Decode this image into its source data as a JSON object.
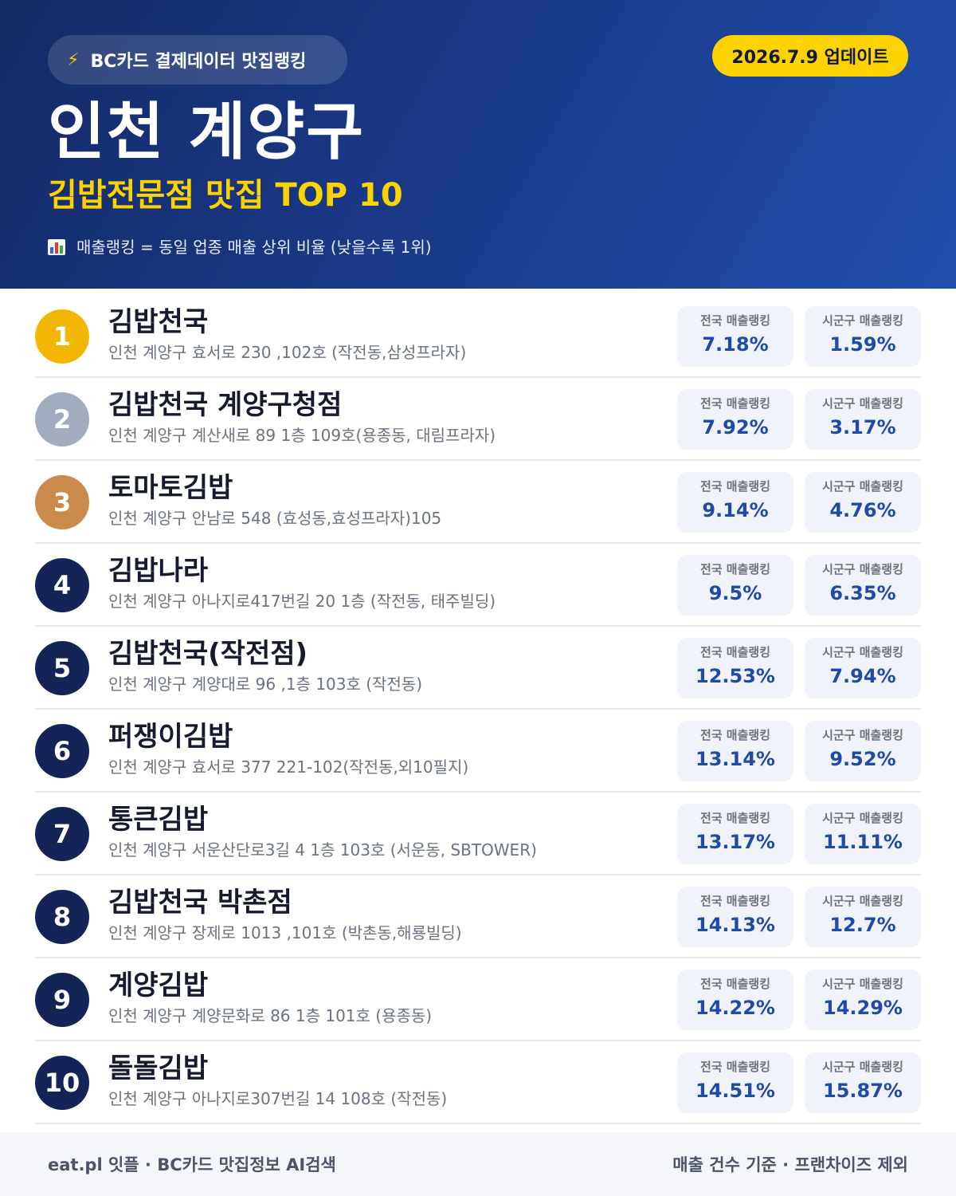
{
  "header": {
    "badge": "BC카드 결제데이터 맛집랭킹",
    "update": "2026.7.9 업데이트",
    "title": "인천 계양구",
    "subtitle": "김밥전문점 맛집 TOP 10",
    "note": "매출랭킹 = 동일 업종 매출 상위 비율 (낮을수록 1위)"
  },
  "labels": {
    "national": "전국 매출랭킹",
    "local": "시군구 매출랭킹"
  },
  "colors": {
    "gold": "#f2b705",
    "silver": "#a3acbf",
    "bronze": "#c98a4b",
    "navy": "#142456",
    "accent_yellow": "#fcd200",
    "value_blue": "#1f4aa8"
  },
  "items": [
    {
      "rank": "1",
      "name": "김밥천국",
      "address": "인천 계양구 효서로 230 ,102호 (작전동,삼성프라자)",
      "national": "7.18%",
      "local": "1.59%"
    },
    {
      "rank": "2",
      "name": "김밥천국 계양구청점",
      "address": "인천 계양구 계산새로 89 1층 109호(용종동, 대림프라자)",
      "national": "7.92%",
      "local": "3.17%"
    },
    {
      "rank": "3",
      "name": "토마토김밥",
      "address": "인천 계양구 안남로 548 (효성동,효성프라자)105",
      "national": "9.14%",
      "local": "4.76%"
    },
    {
      "rank": "4",
      "name": "김밥나라",
      "address": "인천 계양구 아나지로417번길 20 1층 (작전동, 태주빌딩)",
      "national": "9.5%",
      "local": "6.35%"
    },
    {
      "rank": "5",
      "name": "김밥천국(작전점)",
      "address": "인천 계양구 계양대로 96 ,1층 103호 (작전동)",
      "national": "12.53%",
      "local": "7.94%"
    },
    {
      "rank": "6",
      "name": "퍼쟁이김밥",
      "address": "인천 계양구 효서로 377 221-102(작전동,외10필지)",
      "national": "13.14%",
      "local": "9.52%"
    },
    {
      "rank": "7",
      "name": "통큰김밥",
      "address": "인천 계양구 서운산단로3길 4 1층 103호 (서운동, SBTOWER)",
      "national": "13.17%",
      "local": "11.11%"
    },
    {
      "rank": "8",
      "name": "김밥천국 박촌점",
      "address": "인천 계양구 장제로 1013 ,101호 (박촌동,해룡빌딩)",
      "national": "14.13%",
      "local": "12.7%"
    },
    {
      "rank": "9",
      "name": "계양김밥",
      "address": "인천 계양구 계양문화로 86 1층 101호 (용종동)",
      "national": "14.22%",
      "local": "14.29%"
    },
    {
      "rank": "10",
      "name": "돌돌김밥",
      "address": "인천 계양구 아나지로307번길 14 108호 (작전동)",
      "national": "14.51%",
      "local": "15.87%"
    }
  ],
  "footer": {
    "left": "eat.pl 잇플 · BC카드 맛집정보 AI검색",
    "right": "매출 건수 기준 · 프랜차이즈 제외"
  }
}
